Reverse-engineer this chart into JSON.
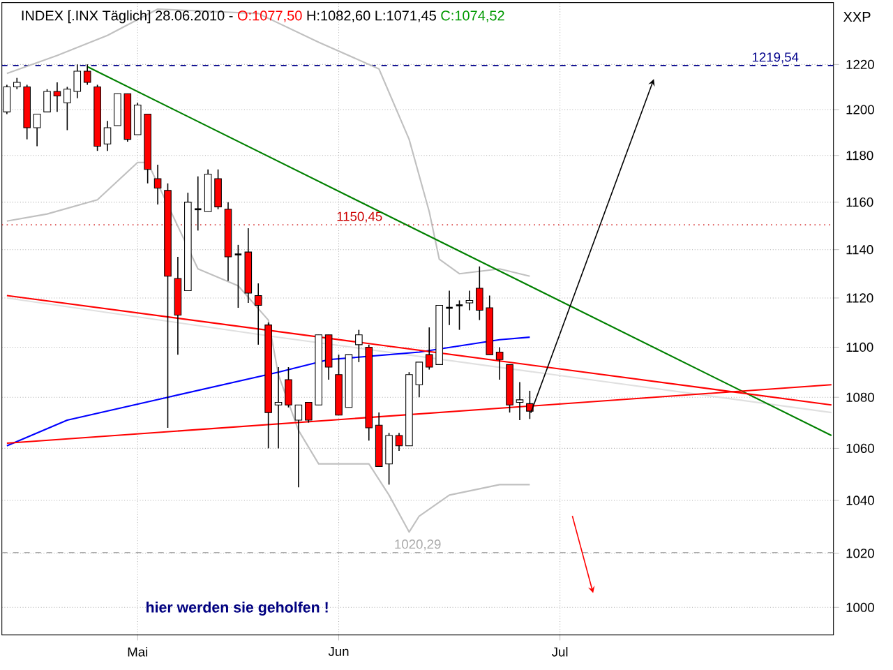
{
  "chart_data": {
    "type": "candlestick",
    "title": "INDEX [.INX Täglich] 28.06.2010 -",
    "annotations": [
      "O:1077,50",
      "H:1082,60",
      "L:1071,45",
      "C:1074,52",
      "XXP",
      "hier werden sie geholfen !"
    ],
    "categories": [
      null,
      null,
      null,
      null,
      null,
      null,
      null,
      null,
      null,
      null,
      null,
      null,
      null,
      "Mai",
      null,
      null,
      null,
      null,
      null,
      null,
      null,
      null,
      null,
      null,
      null,
      null,
      null,
      null,
      null,
      null,
      null,
      null,
      null,
      "Jun",
      null,
      null,
      null,
      null,
      null,
      null,
      null,
      null,
      null,
      null,
      null,
      null,
      null,
      null,
      null,
      null,
      null,
      null,
      null,
      null,
      null,
      "Jul",
      null,
      null,
      null,
      null,
      null,
      null,
      null,
      null,
      null,
      null,
      null,
      null,
      null,
      null,
      null,
      null,
      null,
      null,
      null,
      null,
      null,
      null,
      null,
      null,
      null,
      null,
      null
    ],
    "ohlc": [
      [
        1199,
        1211,
        1198,
        1210
      ],
      [
        1210,
        1214,
        1209,
        1212
      ],
      [
        1210,
        1211,
        1187,
        1192
      ],
      [
        1192,
        1198,
        1184,
        1198
      ],
      [
        1199,
        1209,
        1199,
        1208
      ],
      [
        1208,
        1212,
        1199,
        1206
      ],
      [
        1203,
        1210,
        1191,
        1209
      ],
      [
        1208,
        1220,
        1205,
        1217
      ],
      [
        1217,
        1220,
        1211,
        1212
      ],
      [
        1210,
        1211,
        1182,
        1184
      ],
      [
        1185,
        1195,
        1182,
        1192
      ],
      [
        1193,
        1207,
        1193,
        1207
      ],
      [
        1207,
        1207,
        1186,
        1187
      ],
      [
        1189,
        1203,
        1189,
        1202
      ],
      [
        1198,
        1198,
        1168,
        1174
      ],
      [
        1170,
        1176,
        1159,
        1166
      ],
      [
        1165,
        1168,
        1068,
        1129
      ],
      [
        1128,
        1137,
        1097,
        1113
      ],
      [
        1123,
        1164,
        1123,
        1160
      ],
      [
        1157,
        1171,
        1148,
        1157
      ],
      [
        1156,
        1174,
        1156,
        1172
      ],
      [
        1170,
        1174,
        1157,
        1158
      ],
      [
        1157,
        1160,
        1127,
        1137
      ],
      [
        1138,
        1142,
        1116,
        1138
      ],
      [
        1139,
        1149,
        1118,
        1122
      ],
      [
        1121,
        1126,
        1101,
        1117
      ],
      [
        1109,
        1110,
        1060,
        1074
      ],
      [
        1077,
        1092,
        1060,
        1078
      ],
      [
        1087,
        1092,
        1076,
        1077
      ],
      [
        1071,
        1077,
        1045,
        1077
      ],
      [
        1078,
        1078,
        1070,
        1071
      ],
      [
        1077,
        1105,
        1077,
        1105
      ],
      [
        1105,
        1105,
        1087,
        1092
      ],
      [
        1089,
        1097,
        1073,
        1073
      ],
      [
        1076,
        1097,
        1076,
        1097
      ],
      [
        1101,
        1107,
        1094,
        1105
      ],
      [
        1100,
        1101,
        1063,
        1068
      ],
      [
        1069,
        1074,
        1053,
        1053
      ],
      [
        1054,
        1066,
        1046,
        1065
      ],
      [
        1065,
        1066,
        1059,
        1061
      ],
      [
        1061,
        1090,
        1061,
        1089
      ],
      [
        1085,
        1094,
        1080,
        1094
      ],
      [
        1097,
        1108,
        1091,
        1092
      ],
      [
        1093,
        1117,
        1093,
        1117
      ],
      [
        1116,
        1123,
        1109,
        1116
      ],
      [
        1117,
        1119,
        1107,
        1117
      ],
      [
        1118,
        1123,
        1115,
        1119
      ],
      [
        1124,
        1133,
        1111,
        1115
      ],
      [
        1116,
        1121,
        1097,
        1097
      ],
      [
        1098,
        1100,
        1087,
        1095
      ],
      [
        1093,
        1093,
        1074,
        1077
      ],
      [
        1078,
        1086,
        1071,
        1079
      ],
      [
        1077.5,
        1082.6,
        1071.45,
        1074.52
      ],
      null,
      null,
      null,
      null,
      null,
      null,
      null,
      null,
      null,
      null,
      null,
      null,
      null,
      null,
      null,
      null,
      null,
      null,
      null,
      null,
      null,
      null,
      null,
      null,
      null,
      null,
      null,
      null,
      null,
      null
    ],
    "series": [
      {
        "type": "line",
        "color": "#e0e0e0",
        "values": [
          1120,
          null,
          null,
          null,
          null,
          null,
          null,
          null,
          null,
          null,
          null,
          null,
          null,
          null,
          null,
          null,
          null,
          null,
          null,
          null,
          null,
          null,
          null,
          null,
          null,
          null,
          null,
          1104,
          null,
          null,
          null,
          null,
          null,
          null,
          null,
          null,
          null,
          null,
          null,
          null,
          null,
          null,
          null,
          null,
          null,
          null,
          null,
          null,
          null,
          null,
          null,
          null,
          null,
          null,
          null,
          null,
          null,
          null,
          1087,
          null,
          null,
          null,
          null,
          null,
          null,
          null,
          null,
          null,
          null,
          null,
          null,
          null,
          null,
          null,
          null,
          null,
          null,
          null,
          null,
          null,
          null,
          null,
          1074
        ]
      },
      {
        "type": "line",
        "color": "#c0c0c0",
        "values": [
          1216,
          null,
          null,
          null,
          null,
          1224,
          null,
          null,
          null,
          null,
          1233,
          null,
          null,
          null,
          null,
          1245,
          null,
          null,
          null,
          null,
          null,
          null,
          null,
          null,
          null,
          1243,
          null,
          null,
          null,
          null,
          null,
          1230,
          null,
          null,
          null,
          null,
          null,
          1218,
          null,
          null,
          1187,
          null,
          1156,
          1136,
          null,
          1130,
          null,
          null,
          null,
          1132,
          null,
          null,
          1129,
          null,
          null,
          null,
          null,
          null,
          null,
          null,
          null,
          null,
          null,
          null,
          null,
          null,
          null,
          null,
          null,
          null,
          null,
          null,
          null,
          null,
          null,
          null,
          null,
          null,
          null,
          null,
          null,
          null,
          null
        ]
      },
      {
        "type": "line",
        "color": "#c0c0c0",
        "values": [
          1152,
          null,
          null,
          null,
          1155,
          null,
          null,
          null,
          null,
          1161,
          null,
          null,
          null,
          1177,
          1177,
          null,
          null,
          null,
          null,
          1132,
          null,
          null,
          null,
          1125,
          null,
          null,
          1111,
          1089,
          null,
          1067,
          null,
          1054,
          null,
          null,
          null,
          null,
          1054,
          null,
          1042,
          null,
          1028,
          1034,
          null,
          null,
          1042,
          null,
          null,
          null,
          null,
          1046,
          null,
          null,
          1046,
          null,
          null,
          null,
          null,
          null,
          null,
          null,
          null,
          null,
          null,
          null,
          null,
          null,
          null,
          null,
          null,
          null,
          null,
          null,
          null,
          null,
          null,
          null,
          null,
          null,
          null,
          null,
          null,
          null,
          null
        ]
      },
      {
        "type": "line",
        "color": "#0000ff",
        "values": [
          1061,
          null,
          null,
          null,
          null,
          null,
          1071,
          null,
          null,
          null,
          null,
          null,
          null,
          null,
          null,
          null,
          1080,
          null,
          null,
          null,
          null,
          null,
          null,
          null,
          null,
          null,
          null,
          1090,
          null,
          null,
          null,
          null,
          1095,
          null,
          null,
          null,
          null,
          null,
          null,
          null,
          null,
          1098,
          null,
          null,
          null,
          null,
          null,
          null,
          null,
          1103,
          null,
          null,
          1104,
          null,
          null,
          null,
          null,
          null,
          null,
          null,
          null,
          null,
          null,
          null,
          null,
          null,
          null,
          null,
          null,
          null,
          null,
          null,
          null,
          null,
          null,
          null,
          null,
          null,
          null,
          null,
          null,
          null,
          null
        ]
      },
      {
        "type": "line",
        "color": "#008000",
        "values": [
          null,
          null,
          null,
          null,
          null,
          null,
          null,
          null,
          1219,
          null,
          null,
          null,
          null,
          null,
          null,
          null,
          null,
          null,
          null,
          null,
          null,
          null,
          null,
          null,
          null,
          null,
          null,
          null,
          null,
          null,
          null,
          null,
          null,
          null,
          null,
          null,
          null,
          null,
          null,
          null,
          null,
          null,
          null,
          null,
          null,
          null,
          null,
          null,
          null,
          null,
          null,
          null,
          null,
          null,
          null,
          null,
          null,
          null,
          null,
          null,
          null,
          null,
          null,
          null,
          null,
          null,
          null,
          null,
          null,
          null,
          null,
          null,
          null,
          null,
          null,
          null,
          null,
          null,
          null,
          null,
          null,
          null,
          1065
        ]
      },
      {
        "type": "line",
        "color": "#ff0000",
        "values": [
          1121,
          null,
          null,
          null,
          null,
          null,
          null,
          null,
          null,
          null,
          null,
          null,
          null,
          null,
          null,
          null,
          null,
          null,
          null,
          null,
          null,
          null,
          null,
          null,
          null,
          null,
          null,
          null,
          null,
          null,
          null,
          null,
          null,
          null,
          null,
          null,
          null,
          null,
          null,
          null,
          null,
          null,
          null,
          null,
          null,
          null,
          null,
          null,
          null,
          null,
          null,
          null,
          null,
          null,
          null,
          null,
          null,
          null,
          null,
          null,
          null,
          null,
          null,
          null,
          null,
          null,
          null,
          null,
          null,
          null,
          null,
          null,
          null,
          null,
          null,
          null,
          null,
          null,
          null,
          null,
          null,
          null,
          1077
        ]
      },
      {
        "type": "line",
        "color": "#ff0000",
        "values": [
          1062,
          null,
          null,
          null,
          null,
          null,
          null,
          null,
          null,
          null,
          null,
          null,
          null,
          null,
          null,
          null,
          null,
          null,
          null,
          null,
          null,
          null,
          null,
          null,
          null,
          null,
          null,
          null,
          null,
          null,
          null,
          null,
          null,
          null,
          null,
          null,
          null,
          null,
          null,
          null,
          null,
          null,
          null,
          null,
          null,
          null,
          null,
          null,
          null,
          null,
          null,
          null,
          null,
          null,
          null,
          null,
          null,
          null,
          null,
          null,
          null,
          null,
          null,
          null,
          null,
          null,
          null,
          null,
          null,
          null,
          null,
          null,
          null,
          null,
          null,
          null,
          null,
          null,
          null,
          null,
          null,
          null,
          1085
        ]
      }
    ],
    "ref_lines": [
      {
        "axis": "y",
        "value": 1219.54,
        "label": "1219,54",
        "color": "#00008b",
        "line_style": "dashed"
      },
      {
        "axis": "y",
        "value": 1150.45,
        "label": "1150,45",
        "color": "#cc0000",
        "line_style": "dotted"
      },
      {
        "axis": "y",
        "value": 1020.29,
        "label": "1020,29",
        "color": "#aaaaaa",
        "line_style": "dashed"
      }
    ],
    "ylim": [
      990,
      1248
    ],
    "yticks": [
      1000,
      1020,
      1040,
      1060,
      1080,
      1100,
      1120,
      1140,
      1160,
      1180,
      1200,
      1220
    ],
    "log": true,
    "grid": true
  }
}
